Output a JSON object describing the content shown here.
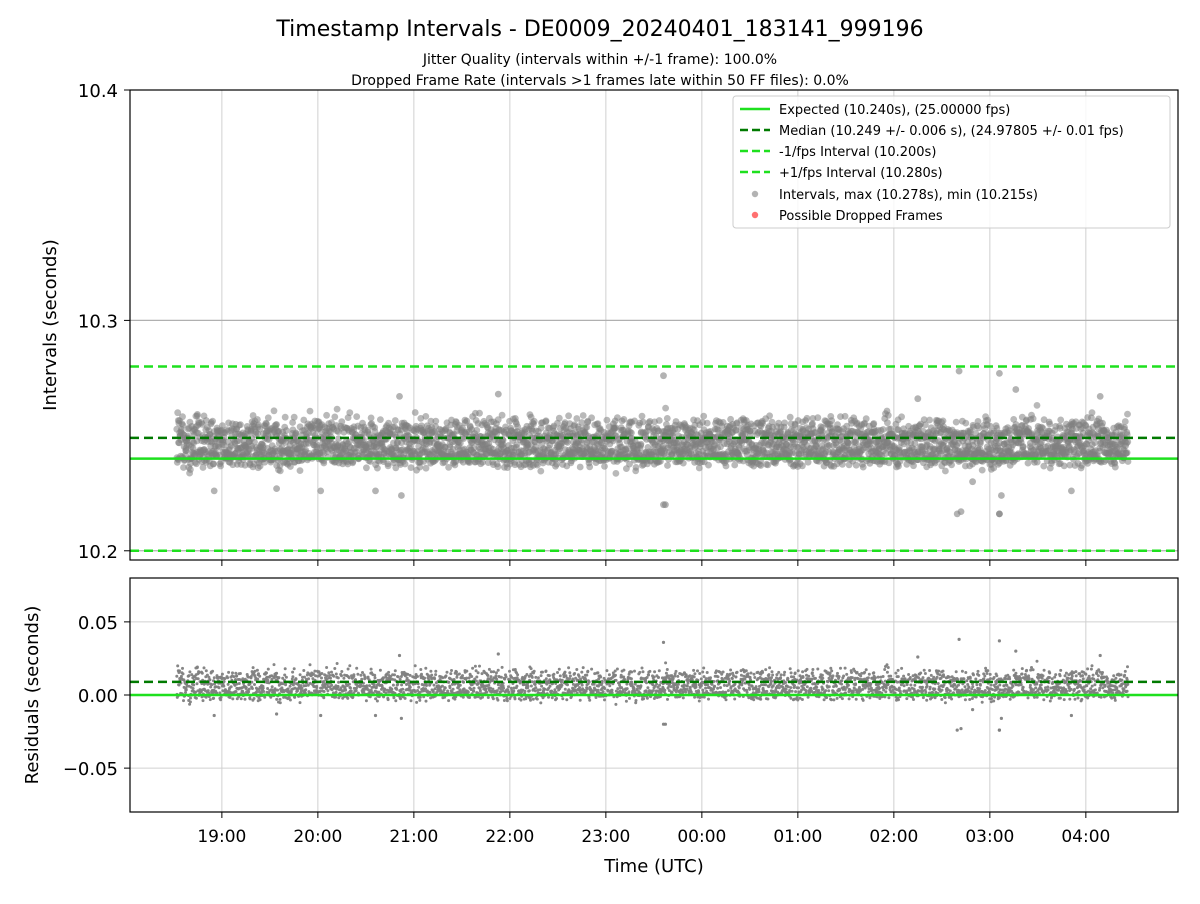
{
  "chart_data": {
    "type": "scatter",
    "title": "Timestamp Intervals - DE0009_20240401_183141_999196",
    "subtitles": [
      "Jitter Quality (intervals within +/-1 frame): 100.0%",
      "Dropped Frame Rate (intervals >1 frames late within 50 FF files): 0.0%"
    ],
    "xlabel": "Time (UTC)",
    "x_ticks": [
      "19:00",
      "20:00",
      "21:00",
      "22:00",
      "23:00",
      "00:00",
      "01:00",
      "02:00",
      "03:00",
      "04:00"
    ],
    "x_tick_hours": [
      19,
      20,
      21,
      22,
      23,
      24,
      25,
      26,
      27,
      28
    ],
    "x_range_hours": [
      18.043,
      28.96
    ],
    "data_x_range_hours": [
      18.53,
      28.44
    ],
    "colors": {
      "expected": "#1ee01e",
      "median": "#007a00",
      "bounds": "#1ee01e",
      "points": "#808080",
      "dropped": "#ff6060",
      "grid": "#d0d0d0"
    },
    "top_panel": {
      "ylabel": "Intervals (seconds)",
      "ylim": [
        10.196,
        10.4
      ],
      "y_ticks": [
        "10.2",
        "10.3",
        "10.4"
      ],
      "y_tick_values": [
        10.2,
        10.3,
        10.4
      ],
      "expected": 10.24,
      "median": 10.249,
      "minus_one_frame": 10.2,
      "plus_one_frame": 10.28,
      "interval_max": 10.278,
      "interval_min": 10.215,
      "legend": [
        "Expected (10.240s), (25.00000 fps)",
        "Median (10.249 +/- 0.006 s), (24.97805 +/- 0.01 fps)",
        "-1/fps Interval (10.200s)",
        "+1/fps Interval (10.280s)",
        "Intervals, max (10.278s), min (10.215s)",
        "Possible Dropped Frames"
      ]
    },
    "bottom_panel": {
      "ylabel": "Residuals (seconds)",
      "ylim": [
        -0.08,
        0.08
      ],
      "y_ticks": [
        "0.05",
        "0.00",
        "−0.05"
      ],
      "y_tick_values": [
        0.05,
        0.0,
        -0.05
      ],
      "zero": 0.0,
      "median_residual": 0.009
    },
    "points_approx": 3500,
    "outliers": [
      {
        "t": 23.6,
        "v": 10.276
      },
      {
        "t": 23.6,
        "v": 10.22
      },
      {
        "t": 26.68,
        "v": 10.278
      },
      {
        "t": 26.66,
        "v": 10.216
      },
      {
        "t": 26.7,
        "v": 10.217
      },
      {
        "t": 27.1,
        "v": 10.277
      },
      {
        "t": 27.1,
        "v": 10.216
      },
      {
        "t": 27.12,
        "v": 10.224
      },
      {
        "t": 21.88,
        "v": 10.268
      },
      {
        "t": 20.85,
        "v": 10.267
      },
      {
        "t": 18.92,
        "v": 10.226
      },
      {
        "t": 19.57,
        "v": 10.227
      },
      {
        "t": 20.03,
        "v": 10.226
      },
      {
        "t": 20.6,
        "v": 10.226
      },
      {
        "t": 20.87,
        "v": 10.224
      },
      {
        "t": 23.62,
        "v": 10.22
      },
      {
        "t": 27.1,
        "v": 10.216
      },
      {
        "t": 26.82,
        "v": 10.23
      },
      {
        "t": 27.27,
        "v": 10.27
      },
      {
        "t": 27.85,
        "v": 10.226
      },
      {
        "t": 28.15,
        "v": 10.267
      },
      {
        "t": 26.25,
        "v": 10.266
      }
    ]
  }
}
